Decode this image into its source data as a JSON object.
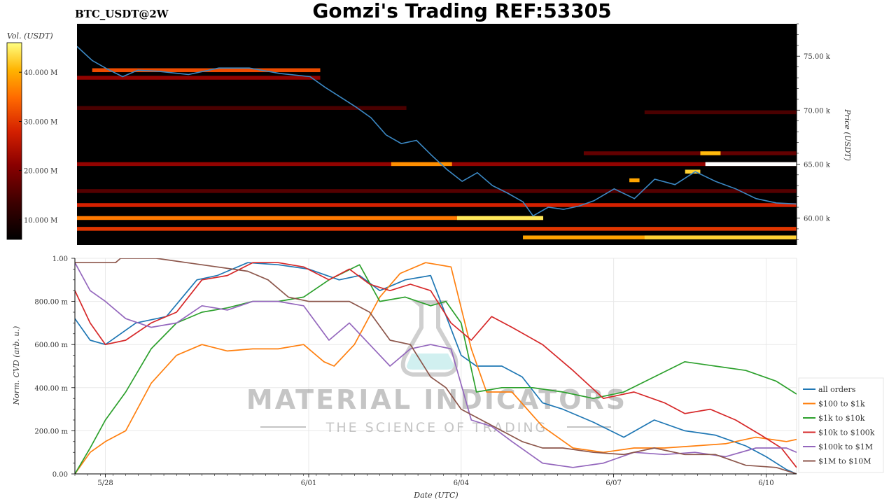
{
  "header": {
    "symbol": "BTC_USDT@2W",
    "title": "Gomzi's Trading REF:53305"
  },
  "colors": {
    "heatmap_bg": "#000000",
    "price_line": "#3b88c4",
    "colorbar": [
      "#000000",
      "#3a0000",
      "#8b0000",
      "#d42000",
      "#ff6a00",
      "#ffb300",
      "#ffff80"
    ]
  },
  "watermark": {
    "brand": "MATERIAL INDICATORS",
    "tagline": "THE SCIENCE OF TRADING"
  },
  "chart_data": [
    {
      "type": "heatmap",
      "colorbar_label": "Vol. (USDT)",
      "colorbar_ticks": [
        "10.000 M",
        "20.000 M",
        "30.000 M",
        "40.000 M"
      ],
      "colorbar_tick_values": [
        10,
        20,
        30,
        40
      ],
      "colorbar_range": [
        6,
        46
      ],
      "ylabel": "Price (USDT)",
      "y_ticks": [
        "60.00 k",
        "65.00 k",
        "70.00 k",
        "75.00 k"
      ],
      "y_tick_values": [
        60,
        65,
        70,
        75
      ],
      "ylim": [
        57.5,
        78
      ],
      "xlim": [
        0,
        14.2
      ],
      "price_series": {
        "x": [
          0,
          0.3,
          0.6,
          0.9,
          1.2,
          1.6,
          2.2,
          2.8,
          3.4,
          4.0,
          4.6,
          4.9,
          5.2,
          5.5,
          5.8,
          6.1,
          6.4,
          6.7,
          7.0,
          7.3,
          7.6,
          7.9,
          8.2,
          8.5,
          8.8,
          9.0,
          9.3,
          9.6,
          9.9,
          10.2,
          10.6,
          11.0,
          11.4,
          11.8,
          12.2,
          12.6,
          13.0,
          13.4,
          13.8,
          14.2
        ],
        "y": [
          75.9,
          74.6,
          73.8,
          73.1,
          73.7,
          73.6,
          73.3,
          73.9,
          73.9,
          73.4,
          73.1,
          72.1,
          71.2,
          70.3,
          69.3,
          67.7,
          66.9,
          67.2,
          65.8,
          64.5,
          63.4,
          64.2,
          63.0,
          62.3,
          61.5,
          60.2,
          61.0,
          60.8,
          61.1,
          61.6,
          62.7,
          61.8,
          63.6,
          63.1,
          64.3,
          63.4,
          62.7,
          61.8,
          61.4,
          61.3
        ]
      },
      "heat_bands": [
        {
          "price": 73.7,
          "x0": 0.3,
          "x1": 4.8,
          "level": 0.6
        },
        {
          "price": 73.0,
          "x0": 0.0,
          "x1": 4.8,
          "level": 0.35
        },
        {
          "price": 70.2,
          "x0": 0.0,
          "x1": 6.5,
          "level": 0.2
        },
        {
          "price": 65.0,
          "x0": 0.0,
          "x1": 14.2,
          "level": 0.35
        },
        {
          "price": 65.0,
          "x0": 6.2,
          "x1": 7.4,
          "level": 0.75
        },
        {
          "price": 62.5,
          "x0": 0.0,
          "x1": 14.2,
          "level": 0.22
        },
        {
          "price": 61.2,
          "x0": 0.0,
          "x1": 14.2,
          "level": 0.5
        },
        {
          "price": 60.0,
          "x0": 0.0,
          "x1": 9.2,
          "level": 0.7
        },
        {
          "price": 60.0,
          "x0": 7.5,
          "x1": 9.2,
          "level": 0.95
        },
        {
          "price": 59.0,
          "x0": 0.0,
          "x1": 14.2,
          "level": 0.55
        },
        {
          "price": 58.2,
          "x0": 8.8,
          "x1": 14.2,
          "level": 0.8
        },
        {
          "price": 58.2,
          "x0": 11.2,
          "x1": 14.2,
          "level": 0.9
        },
        {
          "price": 66.0,
          "x0": 10.0,
          "x1": 14.2,
          "level": 0.25
        },
        {
          "price": 69.8,
          "x0": 11.2,
          "x1": 14.2,
          "level": 0.2
        },
        {
          "price": 65.0,
          "x0": 12.4,
          "x1": 14.2,
          "level": 1.0
        },
        {
          "price": 66.0,
          "x0": 12.3,
          "x1": 12.7,
          "level": 0.85
        },
        {
          "price": 64.3,
          "x0": 12.0,
          "x1": 12.3,
          "level": 0.9
        },
        {
          "price": 63.5,
          "x0": 10.9,
          "x1": 11.1,
          "level": 0.8
        }
      ]
    },
    {
      "type": "line",
      "xlabel": "Date (UTC)",
      "ylabel": "Norm. CVD (arb. u.)",
      "x_ticks": [
        "5/28",
        "6/01",
        "6/04",
        "6/07",
        "6/10"
      ],
      "x_tick_values": [
        0.6,
        4.6,
        7.6,
        10.6,
        13.6
      ],
      "y_ticks": [
        "0.00",
        "200.00 m",
        "400.00 m",
        "600.00 m",
        "800.00 m",
        "1.00"
      ],
      "y_tick_values": [
        0,
        0.2,
        0.4,
        0.6,
        0.8,
        1.0
      ],
      "xlim": [
        0,
        14.2
      ],
      "ylim": [
        0,
        1.0
      ],
      "series": [
        {
          "name": "all orders",
          "color": "#1f77b4",
          "x": [
            0,
            0.3,
            0.6,
            1.2,
            1.8,
            2.4,
            2.8,
            3.4,
            4.0,
            4.6,
            5.2,
            5.6,
            6.0,
            6.5,
            7.0,
            7.6,
            7.9,
            8.4,
            8.8,
            9.2,
            9.6,
            10.2,
            10.8,
            11.4,
            12.0,
            12.6,
            13.2,
            13.6,
            14.0,
            14.2
          ],
          "y": [
            0.72,
            0.62,
            0.6,
            0.7,
            0.73,
            0.9,
            0.92,
            0.98,
            0.97,
            0.95,
            0.9,
            0.92,
            0.85,
            0.9,
            0.92,
            0.55,
            0.5,
            0.5,
            0.45,
            0.33,
            0.3,
            0.24,
            0.17,
            0.25,
            0.2,
            0.18,
            0.13,
            0.08,
            0.02,
            0.0
          ]
        },
        {
          "name": "$100 to $1k",
          "color": "#ff7f0e",
          "x": [
            0,
            0.3,
            0.6,
            1.0,
            1.5,
            2.0,
            2.5,
            3.0,
            3.5,
            4.0,
            4.5,
            4.9,
            5.1,
            5.5,
            6.0,
            6.4,
            6.9,
            7.4,
            7.8,
            8.1,
            8.6,
            9.2,
            9.8,
            10.4,
            11.0,
            11.6,
            12.2,
            12.8,
            13.4,
            14.0,
            14.2
          ],
          "y": [
            0.0,
            0.1,
            0.15,
            0.2,
            0.42,
            0.55,
            0.6,
            0.57,
            0.58,
            0.58,
            0.6,
            0.52,
            0.5,
            0.6,
            0.82,
            0.93,
            0.98,
            0.96,
            0.58,
            0.38,
            0.38,
            0.22,
            0.12,
            0.1,
            0.12,
            0.12,
            0.13,
            0.14,
            0.17,
            0.15,
            0.16
          ]
        },
        {
          "name": "$1k to $10k",
          "color": "#2ca02c",
          "x": [
            0,
            0.3,
            0.6,
            1.0,
            1.5,
            2.0,
            2.5,
            3.0,
            3.5,
            4.0,
            4.5,
            5.0,
            5.6,
            6.0,
            6.5,
            7.0,
            7.3,
            7.6,
            7.9,
            8.4,
            9.0,
            9.6,
            10.2,
            10.8,
            11.4,
            12.0,
            12.6,
            13.2,
            13.8,
            14.2
          ],
          "y": [
            0.0,
            0.12,
            0.25,
            0.38,
            0.58,
            0.7,
            0.75,
            0.77,
            0.8,
            0.8,
            0.82,
            0.9,
            0.97,
            0.8,
            0.82,
            0.78,
            0.8,
            0.7,
            0.38,
            0.4,
            0.4,
            0.38,
            0.35,
            0.38,
            0.45,
            0.52,
            0.5,
            0.48,
            0.43,
            0.37
          ]
        },
        {
          "name": "$10k to $100k",
          "color": "#d62728",
          "x": [
            0,
            0.3,
            0.6,
            1.0,
            1.5,
            2.0,
            2.5,
            3.0,
            3.5,
            4.0,
            4.5,
            5.0,
            5.4,
            5.8,
            6.2,
            6.6,
            7.0,
            7.4,
            7.8,
            8.2,
            8.6,
            9.2,
            9.8,
            10.4,
            11.0,
            11.6,
            12.0,
            12.5,
            13.0,
            13.5,
            13.9,
            14.2
          ],
          "y": [
            0.85,
            0.7,
            0.6,
            0.62,
            0.7,
            0.75,
            0.9,
            0.92,
            0.98,
            0.98,
            0.96,
            0.9,
            0.95,
            0.88,
            0.85,
            0.88,
            0.85,
            0.7,
            0.62,
            0.73,
            0.68,
            0.6,
            0.48,
            0.35,
            0.38,
            0.33,
            0.28,
            0.3,
            0.25,
            0.18,
            0.12,
            0.03
          ]
        },
        {
          "name": "$100k to $1M",
          "color": "#9467bd",
          "x": [
            0,
            0.3,
            0.6,
            1.0,
            1.5,
            2.0,
            2.5,
            3.0,
            3.5,
            4.0,
            4.5,
            5.0,
            5.4,
            5.8,
            6.2,
            6.6,
            7.0,
            7.4,
            7.8,
            8.2,
            8.6,
            9.2,
            9.8,
            10.4,
            11.0,
            11.6,
            12.2,
            12.8,
            13.4,
            14.0,
            14.2
          ],
          "y": [
            0.98,
            0.85,
            0.8,
            0.72,
            0.68,
            0.7,
            0.78,
            0.76,
            0.8,
            0.8,
            0.78,
            0.62,
            0.7,
            0.6,
            0.5,
            0.58,
            0.6,
            0.58,
            0.25,
            0.22,
            0.15,
            0.05,
            0.03,
            0.05,
            0.1,
            0.09,
            0.1,
            0.08,
            0.12,
            0.12,
            0.1
          ]
        },
        {
          "name": "$1M to $10M",
          "color": "#8c564b",
          "x": [
            0,
            0.8,
            0.9,
            1.6,
            2.2,
            2.8,
            3.4,
            3.8,
            4.2,
            4.6,
            5.0,
            5.4,
            5.8,
            6.2,
            6.6,
            7.0,
            7.3,
            7.6,
            8.0,
            8.4,
            8.8,
            9.2,
            9.6,
            10.2,
            10.8,
            11.4,
            12.0,
            12.6,
            13.2,
            13.8,
            14.2
          ],
          "y": [
            0.98,
            0.98,
            1.0,
            1.0,
            0.98,
            0.96,
            0.94,
            0.9,
            0.82,
            0.8,
            0.8,
            0.8,
            0.75,
            0.62,
            0.6,
            0.45,
            0.4,
            0.3,
            0.25,
            0.2,
            0.15,
            0.12,
            0.12,
            0.1,
            0.09,
            0.12,
            0.09,
            0.09,
            0.04,
            0.03,
            0.0
          ]
        }
      ],
      "legend_position": "right"
    }
  ]
}
